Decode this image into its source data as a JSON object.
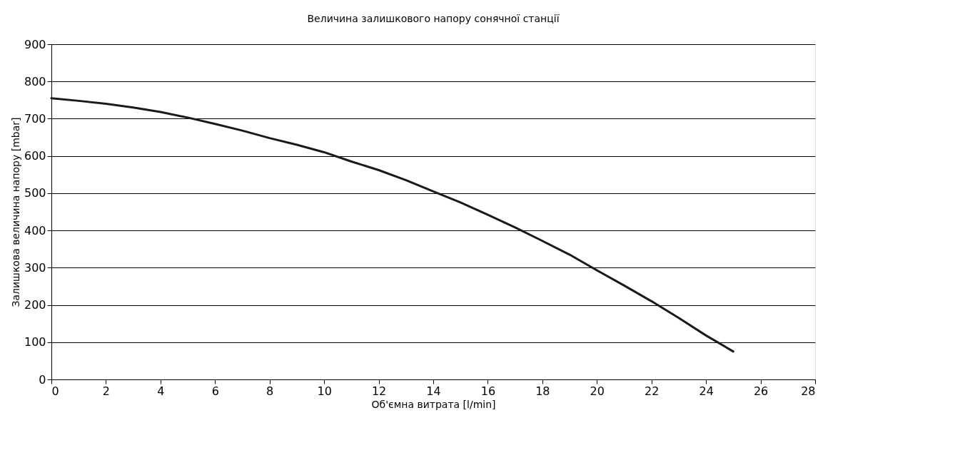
{
  "chart_data": {
    "type": "line",
    "title": "Величина залишкового напору сонячної станції",
    "xlabel": "Об'ємна витрата [l/min]",
    "ylabel": "Залишкова величина напору [mbar]",
    "x": [
      0,
      1,
      2,
      3,
      4,
      5,
      6,
      7,
      8,
      9,
      10,
      11,
      12,
      13,
      14,
      15,
      16,
      17,
      18,
      19,
      20,
      21,
      22,
      23,
      24,
      25
    ],
    "series": [
      {
        "color": "#1a1a1a",
        "values": [
          755,
          748,
          740,
          730,
          718,
          703,
          686,
          668,
          648,
          630,
          610,
          585,
          562,
          535,
          505,
          475,
          442,
          408,
          372,
          335,
          293,
          252,
          210,
          165,
          118,
          75
        ]
      }
    ],
    "xlim": [
      0,
      28
    ],
    "xticks": [
      0,
      2,
      4,
      6,
      8,
      10,
      12,
      14,
      16,
      18,
      20,
      22,
      24,
      26,
      28
    ],
    "ylim": [
      0,
      900
    ],
    "yticks": [
      0,
      100,
      200,
      300,
      400,
      500,
      600,
      700,
      800,
      900
    ],
    "grid": "y",
    "marker": "none",
    "line_style": "solid"
  }
}
